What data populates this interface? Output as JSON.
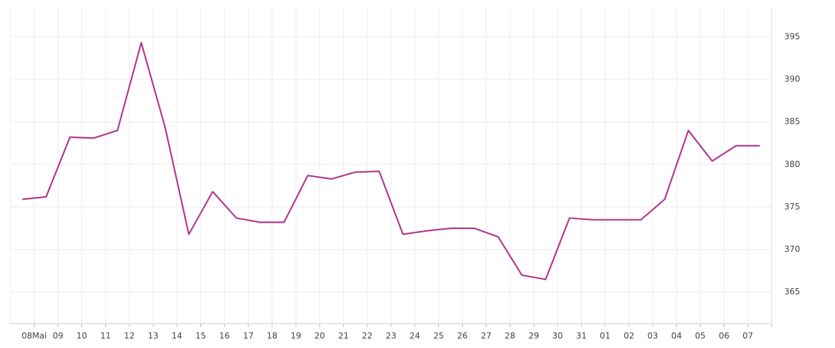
{
  "chart_data": {
    "type": "line",
    "categories": [
      "08Mai",
      "09",
      "10",
      "11",
      "12",
      "13",
      "14",
      "15",
      "16",
      "17",
      "18",
      "19",
      "20",
      "21",
      "22",
      "23",
      "24",
      "25",
      "26",
      "27",
      "28",
      "29",
      "30",
      "31",
      "01",
      "02",
      "03",
      "04",
      "05",
      "06",
      "07",
      null
    ],
    "series": [
      {
        "color": "#b3368c",
        "values": [
          375.9,
          376.2,
          383.2,
          383.1,
          384.0,
          394.3,
          384.4,
          371.8,
          376.8,
          373.7,
          373.2,
          373.2,
          378.7,
          378.3,
          379.1,
          379.2,
          371.8,
          372.2,
          372.5,
          372.5,
          371.5,
          367.0,
          366.5,
          373.7,
          373.5,
          373.5,
          373.5,
          375.9,
          384.0,
          380.4,
          382.2,
          382.2
        ]
      }
    ],
    "ylim": [
      361.3,
      398.5
    ],
    "yticks": [
      365,
      370,
      375,
      380,
      385,
      390,
      395
    ],
    "grid": true
  }
}
